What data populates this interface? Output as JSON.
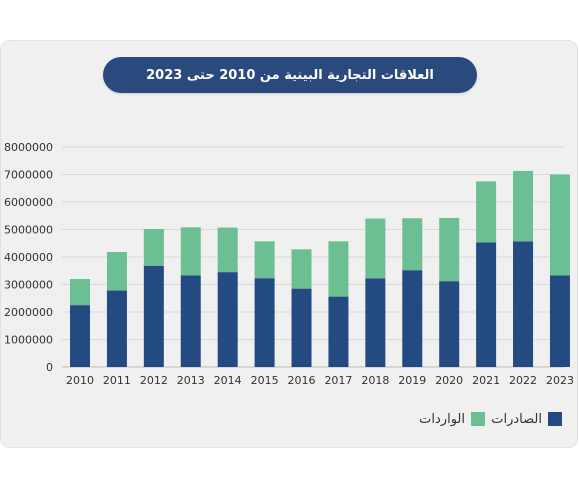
{
  "chart_data": {
    "type": "bar",
    "stacked": true,
    "title": "العلاقات التجارية البينية من 2010 حتى 2023",
    "categories": [
      "2010",
      "2011",
      "2012",
      "2013",
      "2014",
      "2015",
      "2016",
      "2017",
      "2018",
      "2019",
      "2020",
      "2021",
      "2022",
      "2023"
    ],
    "series": [
      {
        "name": "الصادرات",
        "color": "#244a82",
        "values": [
          2250000,
          2780000,
          3680000,
          3330000,
          3450000,
          3230000,
          2850000,
          2560000,
          3220000,
          3520000,
          3120000,
          4530000,
          4570000,
          3330000
        ]
      },
      {
        "name": "الواردات",
        "color": "#6cbe93",
        "values": [
          950000,
          1400000,
          1340000,
          1750000,
          1620000,
          1340000,
          1430000,
          2010000,
          2180000,
          1890000,
          2300000,
          2220000,
          2560000,
          3670000
        ]
      }
    ],
    "ylim": [
      0,
      8000000
    ],
    "yticks": [
      0,
      1000000,
      2000000,
      3000000,
      4000000,
      5000000,
      6000000,
      7000000,
      8000000
    ],
    "grid": true,
    "legend": "bottom-right"
  }
}
